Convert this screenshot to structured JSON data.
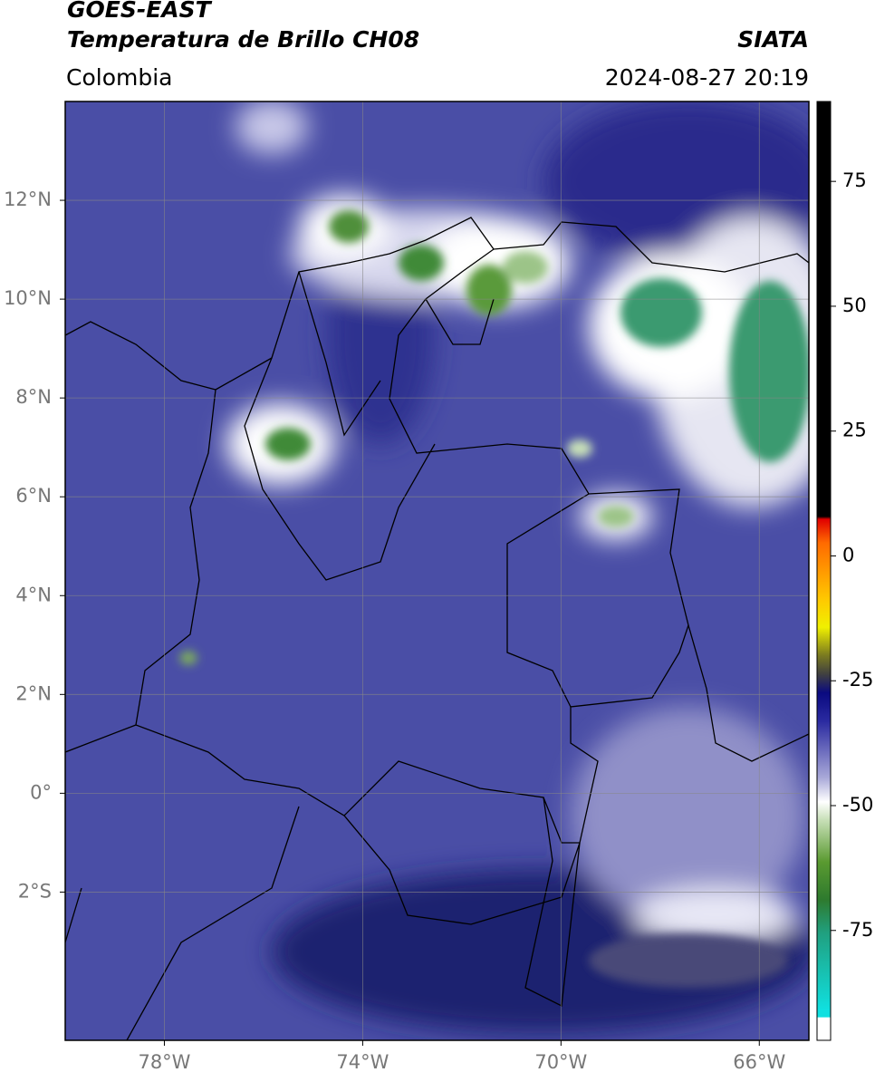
{
  "header": {
    "title": "GOES-EAST",
    "subtitle": "Temperatura de Brillo CH08",
    "source": "SIATA",
    "region": "Colombia",
    "timestamp": "2024-08-27 20:19"
  },
  "map": {
    "lonlim": [
      -80,
      -65
    ],
    "latlim": [
      -5,
      14
    ],
    "grid": true,
    "xticks": [
      {
        "value": -78,
        "label": "78°W"
      },
      {
        "value": -74,
        "label": "74°W"
      },
      {
        "value": -70,
        "label": "70°W"
      },
      {
        "value": -66,
        "label": "66°W"
      }
    ],
    "yticks": [
      {
        "value": 12,
        "label": "12°N"
      },
      {
        "value": 10,
        "label": "10°N"
      },
      {
        "value": 8,
        "label": "8°N"
      },
      {
        "value": 6,
        "label": "6°N"
      },
      {
        "value": 4,
        "label": "4°N"
      },
      {
        "value": 2,
        "label": "2°N"
      },
      {
        "value": 0,
        "label": "0°"
      },
      {
        "value": -2,
        "label": "2°S"
      }
    ]
  },
  "colorbar": {
    "lim": [
      -97,
      91
    ],
    "ticks": [
      75,
      50,
      25,
      0,
      -25,
      -50,
      -75
    ]
  }
}
